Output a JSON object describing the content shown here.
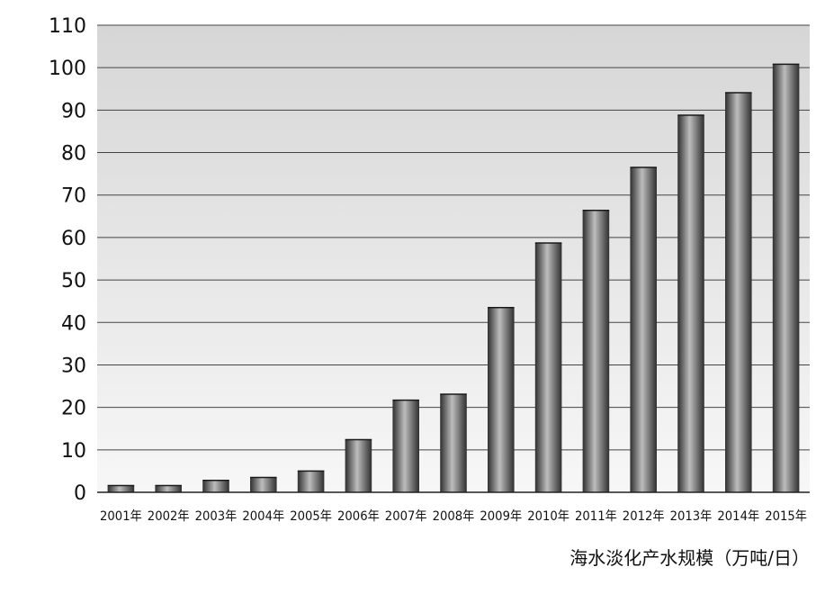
{
  "chart_data": {
    "type": "bar",
    "title": "",
    "xlabel": "",
    "ylabel": "",
    "caption": "海水淡化产水规模（万吨/日）",
    "categories": [
      "2001年",
      "2002年",
      "2003年",
      "2004年",
      "2005年",
      "2006年",
      "2007年",
      "2008年",
      "2009年",
      "2010年",
      "2011年",
      "2012年",
      "2013年",
      "2014年",
      "2015年"
    ],
    "values": [
      1.6,
      1.6,
      2.8,
      3.5,
      5,
      12.4,
      21.7,
      23.1,
      43.5,
      58.7,
      66.4,
      76.5,
      88.8,
      94.1,
      100.8
    ],
    "ylim": [
      0,
      110
    ],
    "yticks": [
      0,
      10,
      20,
      30,
      40,
      50,
      60,
      70,
      80,
      90,
      100,
      110
    ],
    "grid": true,
    "legend": "none",
    "colors": {
      "bar_dark": "#2f2f2f",
      "bar_light": "#bdbdbd",
      "plot_bg_top": "#d6d6d6",
      "plot_bg_bottom": "#f7f7f7",
      "grid": "#444444"
    }
  }
}
